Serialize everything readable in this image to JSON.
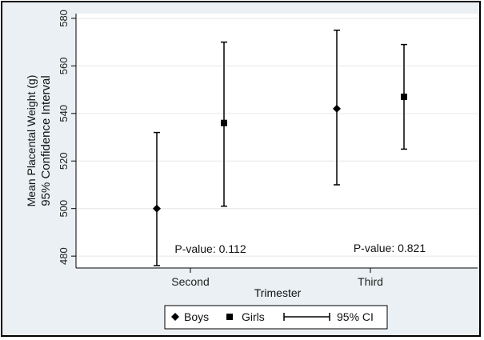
{
  "chart_data": {
    "type": "scatter",
    "xlabel": "Trimester",
    "ylabel": "Mean Placental Weight (g)",
    "ylabel2": "95% Confidence Interval",
    "ylim": [
      475,
      582
    ],
    "yticks": [
      480,
      500,
      520,
      540,
      560,
      580
    ],
    "categories": [
      "Second",
      "Third"
    ],
    "series": [
      {
        "name": "Boys",
        "marker": "diamond",
        "mean": [
          500,
          542
        ],
        "ci_low": [
          476,
          510
        ],
        "ci_high": [
          532,
          575
        ]
      },
      {
        "name": "Girls",
        "marker": "square",
        "mean": [
          536,
          547
        ],
        "ci_low": [
          501,
          525
        ],
        "ci_high": [
          570,
          569
        ]
      }
    ],
    "annotations": [
      "P-value: 0.112",
      "P-value: 0.821"
    ],
    "legend": [
      "Boys",
      "Girls",
      "95% CI"
    ],
    "legend_position": "bottom",
    "grid": true,
    "colors": {
      "background": "#eaf0f3",
      "plot": "#ffffff",
      "marks": "#000000",
      "grid": "#e6e6e6"
    }
  }
}
